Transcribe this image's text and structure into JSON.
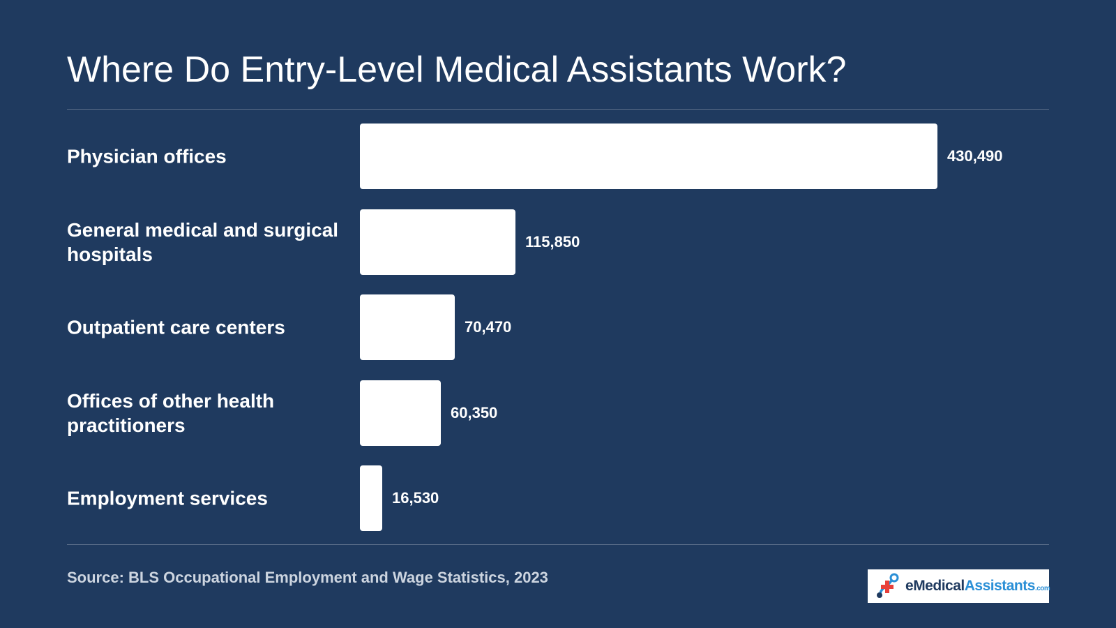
{
  "chart_data": {
    "type": "bar",
    "orientation": "horizontal",
    "title": "Where Do Entry-Level Medical Assistants Work?",
    "categories": [
      "Physician offices",
      "General medical and surgical hospitals",
      "Outpatient care centers",
      "Offices of other health practitioners",
      "Employment services"
    ],
    "values": [
      430490,
      115850,
      70470,
      60350,
      16530
    ],
    "data_labels": [
      "430,490",
      "115,850",
      "70,470",
      "60,350",
      "16,530"
    ],
    "xlabel": "",
    "ylabel": "",
    "grid": false,
    "legend": "none"
  },
  "source": "Source: BLS Occupational Employment and Wage Statistics, 2023",
  "logo": {
    "e": "e",
    "medical": "Medical",
    "assistants": "Assistants",
    "com": ".com"
  },
  "colors": {
    "background": "#1f3a5f",
    "bar": "#ffffff",
    "accent_red": "#e8403a",
    "accent_blue": "#2a8fd6"
  }
}
